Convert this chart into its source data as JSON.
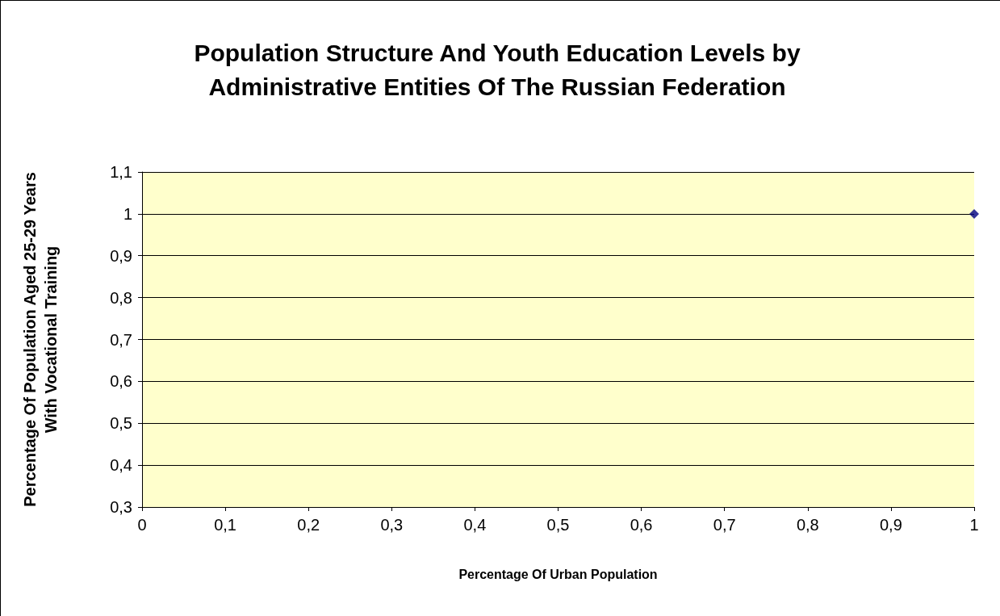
{
  "chart_data": {
    "type": "scatter",
    "title": "Population Structure And Youth Education Levels by\nAdministrative Entities Of The Russian Federation",
    "xlabel": "Percentage Of Urban Population",
    "ylabel": "Percentage Of Population Aged 25-29 Years\nWith Vocational Training",
    "x": [
      1
    ],
    "series": [
      {
        "color": "#000080",
        "values": [
          1
        ]
      }
    ],
    "marker": "diamond",
    "xlim": [
      0,
      1
    ],
    "xticks": [
      0,
      {
        "value": 0.1,
        "label": "0,1"
      },
      {
        "value": 0.2,
        "label": "0,2"
      },
      {
        "value": 0.3,
        "label": "0,3"
      },
      {
        "value": 0.4,
        "label": "0,4"
      },
      {
        "value": 0.5,
        "label": "0,5"
      },
      {
        "value": 0.6,
        "label": "0,6"
      },
      {
        "value": 0.7,
        "label": "0,7"
      },
      {
        "value": 0.8,
        "label": "0,8"
      },
      {
        "value": 0.9,
        "label": "0,9"
      },
      1
    ],
    "ylim": [
      0.3,
      1.1
    ],
    "yticks": [
      {
        "value": 0.3,
        "label": "0,3"
      },
      {
        "value": 0.4,
        "label": "0,4"
      },
      {
        "value": 0.5,
        "label": "0,5"
      },
      {
        "value": 0.6,
        "label": "0,6"
      },
      {
        "value": 0.7,
        "label": "0,7"
      },
      {
        "value": 0.8,
        "label": "0,8"
      },
      {
        "value": 0.9,
        "label": "0,9"
      },
      1,
      {
        "value": 1.1,
        "label": "1,1"
      }
    ],
    "grid": "y"
  }
}
